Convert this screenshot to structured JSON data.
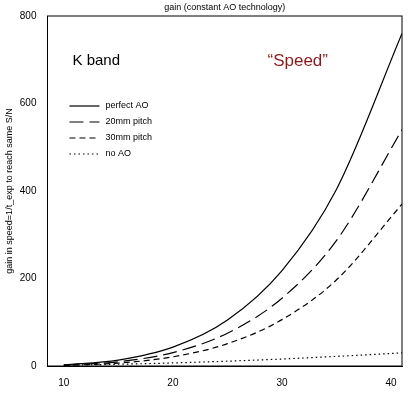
{
  "chart_data": {
    "type": "line",
    "title": "gain (constant AO technology)",
    "y_label": "gain in speed=1/t_exp to reach same S/N",
    "annotations": [
      {
        "text": "K band",
        "color": "#000000"
      },
      {
        "text": "“Speed”",
        "color": "#8b1a1a"
      }
    ],
    "x": [
      10,
      15,
      20,
      25,
      30,
      35,
      41
    ],
    "series": [
      {
        "name": "perfect AO",
        "color": "#000000",
        "line_style": "solid",
        "values": [
          2.7,
          13.6,
          43,
          105,
          218,
          404,
          760
        ]
      },
      {
        "name": "20mm pitch",
        "color": "#000000",
        "line_style": "longdash",
        "values": [
          1.9,
          9.7,
          30.6,
          75,
          155,
          287,
          540
        ]
      },
      {
        "name": "30mm pitch",
        "color": "#000000",
        "line_style": "dashed",
        "values": [
          1.3,
          6.6,
          21,
          51,
          106,
          197,
          370
        ]
      },
      {
        "name": "no AO",
        "color": "#000000",
        "line_style": "dotted",
        "values": [
          1.8,
          4,
          7,
          11,
          16,
          22,
          30
        ]
      }
    ],
    "xlim": [
      8.5,
      41
    ],
    "xticks": [
      10,
      20,
      30,
      40
    ],
    "ylim": [
      0,
      800
    ],
    "yticks": [
      0,
      200,
      400,
      600,
      800
    ],
    "legend": "upper left",
    "grid": false
  }
}
